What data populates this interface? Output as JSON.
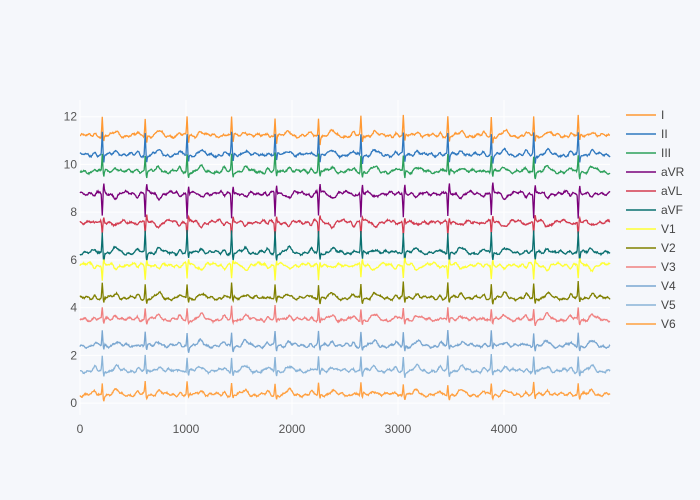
{
  "chart_data": {
    "type": "line",
    "title": "",
    "xlabel": "",
    "ylabel": "",
    "xlim": [
      0,
      5000
    ],
    "ylim": [
      -0.5,
      12.7
    ],
    "x_ticks": [
      0,
      1000,
      2000,
      3000,
      4000
    ],
    "y_ticks": [
      0,
      2,
      4,
      6,
      8,
      10,
      12
    ],
    "grid": true,
    "legend_position": "right",
    "beat_x": [
      210,
      615,
      1010,
      1430,
      1840,
      2250,
      2650,
      3050,
      3470,
      3880,
      4280,
      4700
    ],
    "series": [
      {
        "name": "I",
        "baseline": 11.2,
        "spike": 0.8,
        "color": "#ff9933"
      },
      {
        "name": "II",
        "baseline": 10.4,
        "spike": 0.9,
        "color": "#2f78bf"
      },
      {
        "name": "III",
        "baseline": 9.7,
        "spike": 0.7,
        "color": "#2ca05a"
      },
      {
        "name": "aVR",
        "baseline": 8.8,
        "spike": -1.0,
        "color": "#7a007a"
      },
      {
        "name": "aVL",
        "baseline": 7.6,
        "spike": -0.6,
        "color": "#d33b4f"
      },
      {
        "name": "aVF",
        "baseline": 6.3,
        "spike": 0.9,
        "color": "#0a7070"
      },
      {
        "name": "V1",
        "baseline": 5.8,
        "spike": -0.6,
        "color": "#ffff33"
      },
      {
        "name": "V2",
        "baseline": 4.4,
        "spike": 0.6,
        "color": "#808000"
      },
      {
        "name": "V3",
        "baseline": 3.5,
        "spike": 0.5,
        "color": "#f08080"
      },
      {
        "name": "V4",
        "baseline": 2.4,
        "spike": 0.6,
        "color": "#7aa7d1"
      },
      {
        "name": "V5",
        "baseline": 1.35,
        "spike": 0.6,
        "color": "#8ab4d8"
      },
      {
        "name": "V6",
        "baseline": 0.35,
        "spike": 0.5,
        "color": "#ffa040"
      }
    ]
  }
}
